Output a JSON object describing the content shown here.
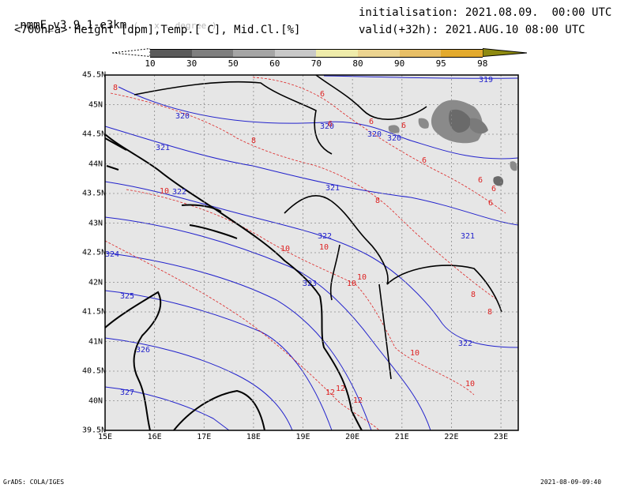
{
  "header": {
    "model": "-nmmE_v3.9.1-e3km",
    "grid_note": "( . x . degree )",
    "fields": "<700hPa> Height [dpm],Temp.[ C], Mid.Cl.[%]",
    "init_label": "initialisation:",
    "init_value": "2021.08.09.  00:00 UTC",
    "valid_label": "valid(+32h):",
    "valid_value": "2021.AUG.10 08:00 UTC"
  },
  "colorbar": {
    "levels": [
      "10",
      "30",
      "50",
      "60",
      "70",
      "80",
      "90",
      "95",
      "98"
    ],
    "colors": [
      "#5a5a5a",
      "#7f7f7f",
      "#a5a5a5",
      "#c8c8c8",
      "#efecaa",
      "#ecd490",
      "#e8bf66",
      "#e3aa2d",
      "#8e8a10"
    ]
  },
  "map": {
    "lon_ticks": [
      "15E",
      "16E",
      "17E",
      "18E",
      "19E",
      "20E",
      "21E",
      "22E",
      "23E"
    ],
    "lat_ticks": [
      "45.5N",
      "45N",
      "44.5N",
      "44N",
      "43.5N",
      "43N",
      "42.5N",
      "42N",
      "41.5N",
      "41N",
      "40.5N",
      "40N",
      "39.5N"
    ],
    "height_contour_labels": [
      "319",
      "320",
      "320",
      "320",
      "320",
      "321",
      "321",
      "321",
      "322",
      "322",
      "322",
      "323",
      "324",
      "325",
      "326",
      "327"
    ],
    "temp_contour_labels": [
      "8",
      "6",
      "6",
      "6",
      "6",
      "6",
      "6",
      "6",
      "6",
      "8",
      "8",
      "8",
      "8",
      "10",
      "10",
      "10",
      "10",
      "10",
      "10",
      "10",
      "12",
      "12",
      "12"
    ],
    "colors": {
      "land": "#e6e6e6",
      "height_contour": "#2222cc",
      "temp_contour": "#dd2222",
      "coast": "#000000"
    }
  },
  "footer": {
    "left": "GrADS: COLA/IGES",
    "right": "2021-08-09-09:40"
  }
}
